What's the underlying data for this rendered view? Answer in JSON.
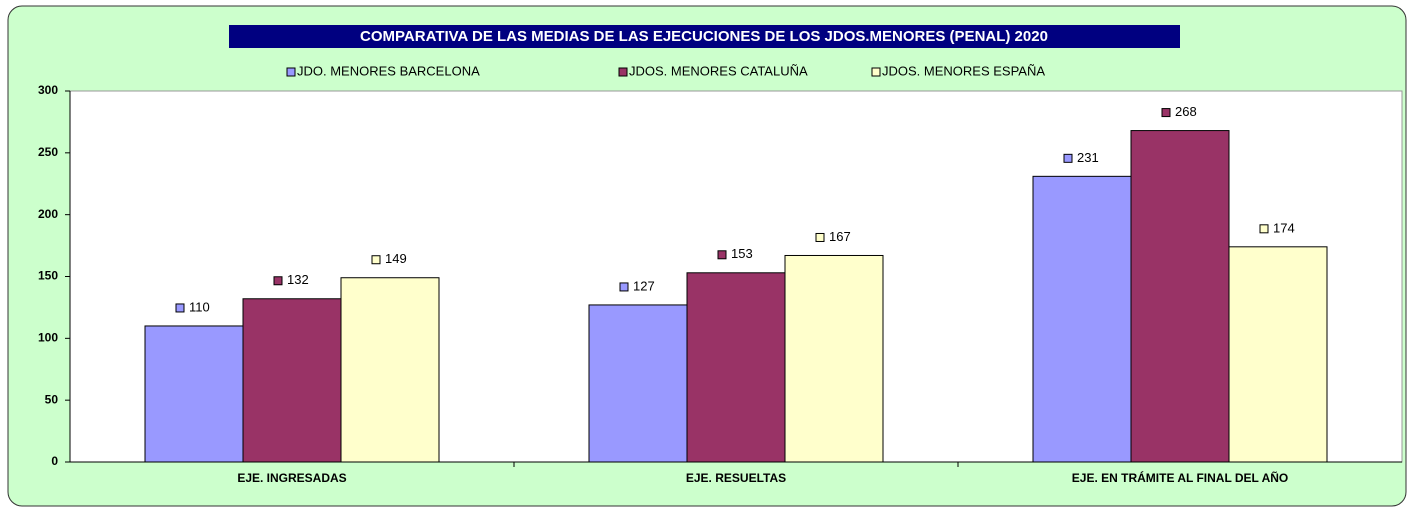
{
  "chart_data": {
    "type": "bar",
    "title": "COMPARATIVA DE LAS MEDIAS DE LAS EJECUCIONES  DE LOS JDOS.MENORES (PENAL)  2020",
    "categories": [
      "EJE. INGRESADAS",
      "EJE. RESUELTAS",
      "EJE. EN TRÁMITE AL FINAL DEL AÑO"
    ],
    "series": [
      {
        "name": "JDO. MENORES BARCELONA",
        "color": "#9999ff",
        "values": [
          110,
          127,
          231
        ]
      },
      {
        "name": "JDOS. MENORES CATALUÑA",
        "color": "#993366",
        "values": [
          132,
          153,
          268
        ]
      },
      {
        "name": "JDOS. MENORES ESPAÑA",
        "color": "#ffffcc",
        "values": [
          149,
          167,
          174
        ]
      }
    ],
    "ylim": [
      0,
      300
    ],
    "yticks": [
      0,
      50,
      100,
      150,
      200,
      250,
      300
    ],
    "grid": false,
    "legend": "top"
  }
}
